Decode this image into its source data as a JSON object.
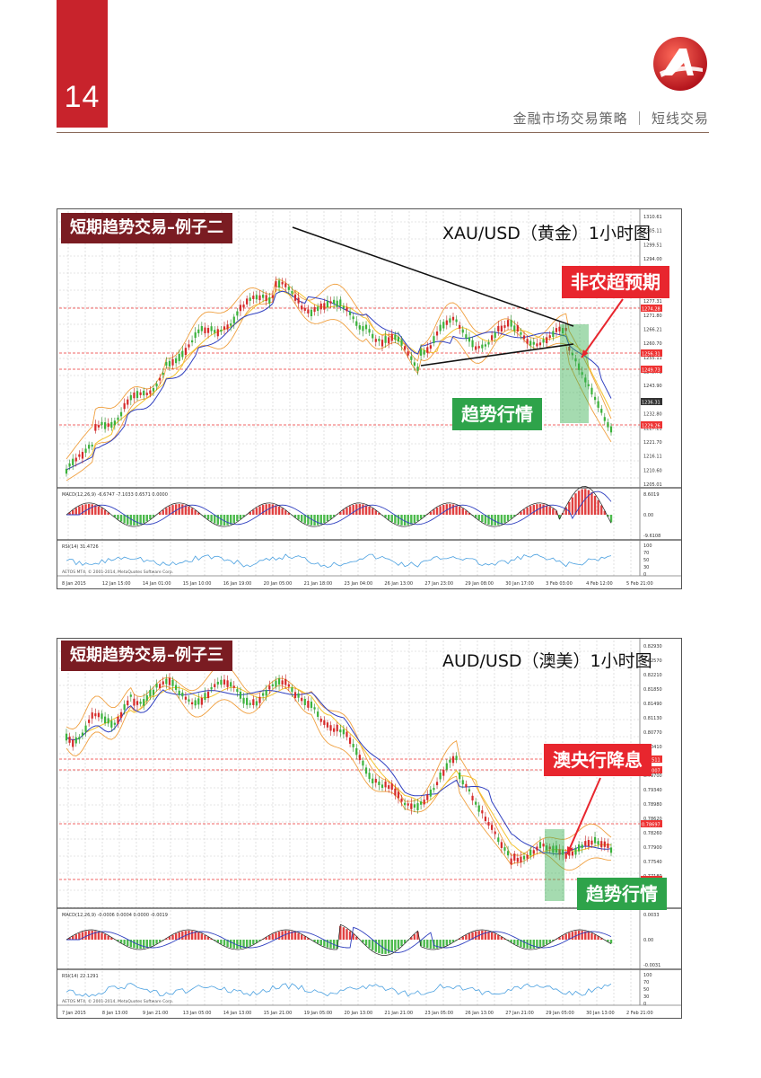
{
  "page": {
    "number": "14",
    "header_title": "金融市场交易策略 ｜ 短线交易"
  },
  "charts": [
    {
      "example_label": "短期趋势交易–例子二",
      "symbol_title": "XAU/USD（黄金）1小时图",
      "event_label": "非农超预期",
      "trend_label": "趋势行情",
      "price_ticks": [
        "1310.61",
        "1305.11",
        "1299.51",
        "1294.00",
        "1288.41",
        "1282.90",
        "1277.31",
        "1271.80",
        "1266.21",
        "1260.70",
        "1255.11",
        "1249.71",
        "1243.90",
        "1238.31",
        "1232.80",
        "1227.21",
        "1221.70",
        "1216.11",
        "1210.60",
        "1205.01"
      ],
      "red_levels": [
        "1274.28",
        "1256.31",
        "1249.73",
        "1229.26"
      ],
      "current_price": "1236.31",
      "macd_label": "MACD(12,26,9) -6.6747 -7.1033 0.6571 0.0000",
      "macd_ticks": [
        "8.6019",
        "0.00",
        "-9.6108"
      ],
      "rsi_label": "RSI(14) 31.4726",
      "rsi_ticks": [
        "100",
        "70",
        "50",
        "30",
        "0"
      ],
      "copyright": "AETOS MT4, © 2001-2014, MetaQuotes Software Corp.",
      "time_labels": [
        "8 Jan 2015",
        "12 Jan 15:00",
        "14 Jan 01:00",
        "15 Jan 10:00",
        "16 Jan 19:00",
        "20 Jan 05:00",
        "21 Jan 18:00",
        "23 Jan 04:00",
        "26 Jan 13:00",
        "27 Jan 23:00",
        "29 Jan 08:00",
        "30 Jan 17:00",
        "3 Feb 03:00",
        "4 Feb 12:00",
        "5 Feb 21:00"
      ]
    },
    {
      "example_label": "短期趋势交易–例子三",
      "symbol_title": "AUD/USD（澳美）1小时图",
      "event_label": "澳央行降息",
      "trend_label": "趋势行情",
      "price_ticks": [
        "0.82930",
        "0.82570",
        "0.82210",
        "0.81850",
        "0.81490",
        "0.81130",
        "0.80770",
        "0.80410",
        "0.80050",
        "0.79700",
        "0.79340",
        "0.78980",
        "0.78620",
        "0.78260",
        "0.77900",
        "0.77540",
        "0.77180",
        "0.76820",
        "0.76475"
      ],
      "red_levels": [
        "0.80511",
        "0.80007",
        "0.78697",
        "0.77145"
      ],
      "current_price": "0.76691",
      "macd_label": "MACD(12,26,9) -0.0006 0.0004 0.0000 -0.0019",
      "macd_ticks": [
        "0.0033",
        "0.00",
        "-0.0031"
      ],
      "rsi_label": "RSI(14) 22.1291",
      "rsi_ticks": [
        "100",
        "70",
        "50",
        "30",
        "0"
      ],
      "copyright": "AETOS MT4, © 2001-2014, MetaQuotes Software Corp.",
      "time_labels": [
        "7 Jan 2015",
        "8 Jan 13:00",
        "9 Jan 21:00",
        "13 Jan 05:00",
        "14 Jan 13:00",
        "15 Jan 21:00",
        "19 Jan 05:00",
        "20 Jan 13:00",
        "21 Jan 21:00",
        "23 Jan 05:00",
        "26 Jan 13:00",
        "27 Jan 21:00",
        "29 Jan 05:00",
        "30 Jan 13:00",
        "2 Feb 21:00"
      ]
    }
  ],
  "colors": {
    "brand_red": "#c8232c",
    "label_dark_red": "#7a1c22",
    "event_red": "#e8262e",
    "trend_green": "#2ea34a"
  }
}
